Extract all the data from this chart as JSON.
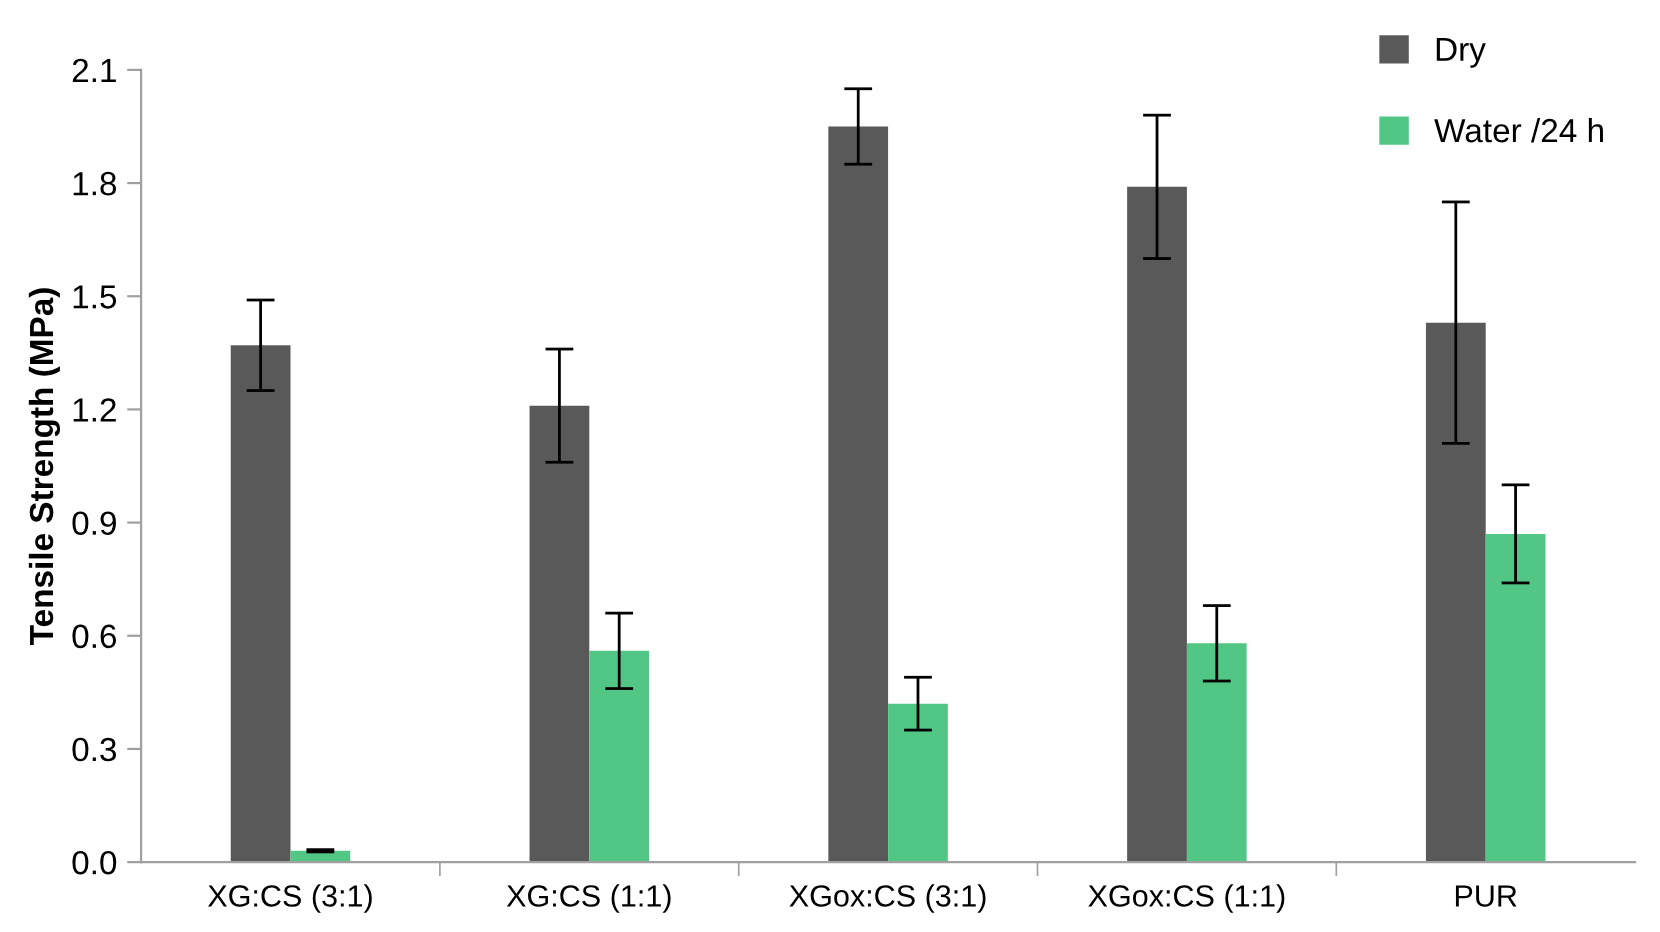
{
  "chart_data": {
    "type": "bar",
    "ylabel": "Tensile Strength (MPa)",
    "categories": [
      "XG:CS (3:1)",
      "XG:CS (1:1)",
      "XGox:CS (3:1)",
      "XGox:CS (1:1)",
      "PUR"
    ],
    "series": [
      {
        "name": "Dry",
        "color": "#595959",
        "values": [
          1.37,
          1.21,
          1.95,
          1.79,
          1.43
        ],
        "errors": [
          0.12,
          0.15,
          0.1,
          0.19,
          0.32
        ]
      },
      {
        "name": "Water /24 h",
        "color": "#52c785",
        "values": [
          0.03,
          0.56,
          0.42,
          0.58,
          0.87
        ],
        "errors": [
          0.003,
          0.1,
          0.07,
          0.1,
          0.13
        ]
      }
    ],
    "ylim": [
      0,
      2.1
    ],
    "yticks": [
      {
        "value": 0,
        "label": "0.0"
      },
      0.3,
      0.6,
      0.9,
      1.2,
      1.5,
      1.8,
      2.1
    ],
    "grid": false,
    "legend": "top right"
  }
}
